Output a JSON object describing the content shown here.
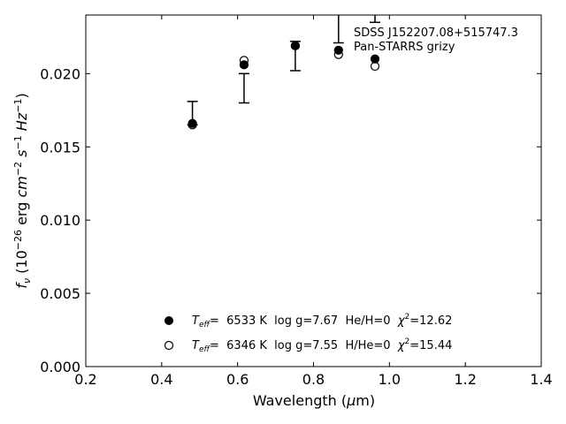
{
  "chart_data": {
    "type": "scatter",
    "xlabel": "Wavelength (μm)",
    "ylabel": "f_ν (10^-26 erg cm^-2 s^-1 Hz^-1)",
    "xlim": [
      0.2,
      1.4
    ],
    "ylim": [
      0.0,
      0.024
    ],
    "xticks": [
      "0.2",
      "0.4",
      "0.6",
      "0.8",
      "1.0",
      "1.2",
      "1.4"
    ],
    "yticks": [
      "0.000",
      "0.005",
      "0.010",
      "0.015",
      "0.020"
    ],
    "grid": false,
    "annotation": {
      "line1": "SDSS J152207.08+515747.3",
      "line2": "Pan-STARRS grizy"
    },
    "observed": {
      "x": [
        0.481,
        0.617,
        0.752,
        0.866,
        0.962
      ],
      "y": [
        0.0173,
        0.019,
        0.0212,
        0.0236,
        0.0265
      ],
      "yerr": [
        0.0008,
        0.001,
        0.001,
        0.0015,
        0.003
      ]
    },
    "series": [
      {
        "name": "Teff= 6533 K log g=7.67 He/H=0 χ2=12.62",
        "marker": "filled",
        "x": [
          0.481,
          0.617,
          0.752,
          0.866,
          0.962
        ],
        "y": [
          0.0166,
          0.0206,
          0.0219,
          0.0216,
          0.021
        ]
      },
      {
        "name": "Teff= 6346 K log g=7.55 H/He=0 χ2=15.44",
        "marker": "open",
        "x": [
          0.481,
          0.617,
          0.752,
          0.866,
          0.962
        ],
        "y": [
          0.0165,
          0.0209,
          0.0219,
          0.0213,
          0.0205
        ]
      }
    ],
    "legend": {
      "placement": "lower-center",
      "entries": [
        {
          "teff_label": "T",
          "teff_sub": "eff",
          "value": "=  6533 K  log g=7.67  He/H=0  ",
          "chi": "χ",
          "chi_sup": "2",
          "chi_value": "=12.62"
        },
        {
          "teff_label": "T",
          "teff_sub": "eff",
          "value": "=  6346 K  log g=7.55  H/He=0  ",
          "chi": "χ",
          "chi_sup": "2",
          "chi_value": "=15.44"
        }
      ]
    }
  }
}
